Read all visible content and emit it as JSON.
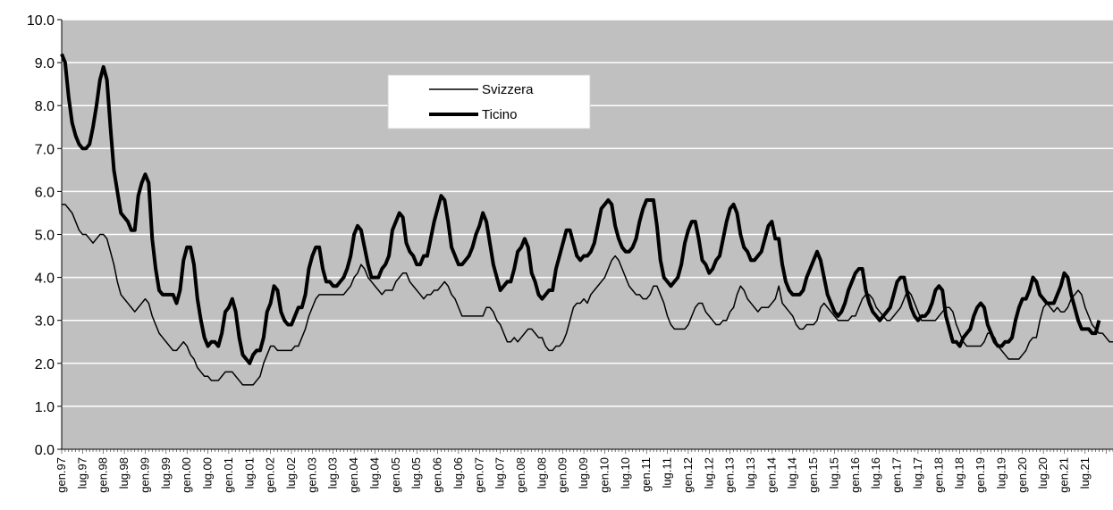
{
  "chart_data": {
    "type": "line",
    "title": "",
    "xlabel": "",
    "ylabel": "",
    "ylim": [
      0,
      10
    ],
    "y_ticks": [
      "0.0",
      "1.0",
      "2.0",
      "3.0",
      "4.0",
      "5.0",
      "6.0",
      "7.0",
      "8.0",
      "9.0",
      "10.0"
    ],
    "grid": "horizontal",
    "plot_background": "#c0c0c0",
    "grid_color": "#ffffff",
    "legend_position": "top-center",
    "x_labels": [
      "gen.97",
      "lug.97",
      "gen.98",
      "lug.98",
      "gen.99",
      "lug.99",
      "gen.00",
      "lug.00",
      "gen.01",
      "lug.01",
      "gen.02",
      "lug.02",
      "gen.03",
      "lug.03",
      "gen.04",
      "lug.04",
      "gen.05",
      "lug.05",
      "gen.06",
      "lug.06",
      "gen.07",
      "lug.07",
      "gen.08",
      "lug.08",
      "gen.09",
      "lug.09",
      "gen.10",
      "lug.10",
      "gen.11",
      "lug.11",
      "gen.12",
      "lug.12",
      "gen.13",
      "lug.13",
      "gen.14",
      "lug.14",
      "gen.15",
      "lug.15",
      "gen.16",
      "lug.16",
      "gen.17",
      "lug.17",
      "gen.18",
      "lug.18",
      "gen.19",
      "lug.19",
      "gen.20",
      "lug.20",
      "gen.21",
      "lug.21"
    ],
    "series": [
      {
        "name": "Svizzera",
        "color": "#000000",
        "width": 1.5,
        "values": [
          5.7,
          5.7,
          5.6,
          5.5,
          5.3,
          5.1,
          5.0,
          5.0,
          4.9,
          4.8,
          4.9,
          5.0,
          5.0,
          4.9,
          4.6,
          4.3,
          3.9,
          3.6,
          3.5,
          3.4,
          3.3,
          3.2,
          3.3,
          3.4,
          3.5,
          3.4,
          3.1,
          2.9,
          2.7,
          2.6,
          2.5,
          2.4,
          2.3,
          2.3,
          2.4,
          2.5,
          2.4,
          2.2,
          2.1,
          1.9,
          1.8,
          1.7,
          1.7,
          1.6,
          1.6,
          1.6,
          1.7,
          1.8,
          1.8,
          1.8,
          1.7,
          1.6,
          1.5,
          1.5,
          1.5,
          1.5,
          1.6,
          1.7,
          2.0,
          2.2,
          2.4,
          2.4,
          2.3,
          2.3,
          2.3,
          2.3,
          2.3,
          2.4,
          2.4,
          2.6,
          2.8,
          3.1,
          3.3,
          3.5,
          3.6,
          3.6,
          3.6,
          3.6,
          3.6,
          3.6,
          3.6,
          3.6,
          3.7,
          3.8,
          4.0,
          4.1,
          4.3,
          4.2,
          4.0,
          3.9,
          3.8,
          3.7,
          3.6,
          3.7,
          3.7,
          3.7,
          3.9,
          4.0,
          4.1,
          4.1,
          3.9,
          3.8,
          3.7,
          3.6,
          3.5,
          3.6,
          3.6,
          3.7,
          3.7,
          3.8,
          3.9,
          3.8,
          3.6,
          3.5,
          3.3,
          3.1,
          3.1,
          3.1,
          3.1,
          3.1,
          3.1,
          3.1,
          3.3,
          3.3,
          3.2,
          3.0,
          2.9,
          2.7,
          2.5,
          2.5,
          2.6,
          2.5,
          2.6,
          2.7,
          2.8,
          2.8,
          2.7,
          2.6,
          2.6,
          2.4,
          2.3,
          2.3,
          2.4,
          2.4,
          2.5,
          2.7,
          3.0,
          3.3,
          3.4,
          3.4,
          3.5,
          3.4,
          3.6,
          3.7,
          3.8,
          3.9,
          4.0,
          4.2,
          4.4,
          4.5,
          4.4,
          4.2,
          4.0,
          3.8,
          3.7,
          3.6,
          3.6,
          3.5,
          3.5,
          3.6,
          3.8,
          3.8,
          3.6,
          3.4,
          3.1,
          2.9,
          2.8,
          2.8,
          2.8,
          2.8,
          2.9,
          3.1,
          3.3,
          3.4,
          3.4,
          3.2,
          3.1,
          3.0,
          2.9,
          2.9,
          3.0,
          3.0,
          3.2,
          3.3,
          3.6,
          3.8,
          3.7,
          3.5,
          3.4,
          3.3,
          3.2,
          3.3,
          3.3,
          3.3,
          3.4,
          3.5,
          3.8,
          3.4,
          3.3,
          3.2,
          3.1,
          2.9,
          2.8,
          2.8,
          2.9,
          2.9,
          2.9,
          3.0,
          3.3,
          3.4,
          3.3,
          3.2,
          3.1,
          3.0,
          3.0,
          3.0,
          3.0,
          3.1,
          3.1,
          3.3,
          3.5,
          3.6,
          3.6,
          3.5,
          3.3,
          3.2,
          3.1,
          3.0,
          3.0,
          3.1,
          3.2,
          3.3,
          3.5,
          3.7,
          3.6,
          3.4,
          3.2,
          3.0,
          3.0,
          3.0,
          3.0,
          3.0,
          3.1,
          3.2,
          3.3,
          3.3,
          3.2,
          2.9,
          2.7,
          2.5,
          2.4,
          2.4,
          2.4,
          2.4,
          2.4,
          2.5,
          2.7,
          2.7,
          2.6,
          2.4,
          2.3,
          2.2,
          2.1,
          2.1,
          2.1,
          2.1,
          2.2,
          2.3,
          2.5,
          2.6,
          2.6,
          3.0,
          3.3,
          3.4,
          3.3,
          3.2,
          3.3,
          3.2,
          3.2,
          3.3,
          3.5,
          3.6,
          3.7,
          3.6,
          3.3,
          3.1,
          2.9,
          2.8,
          2.7,
          2.7,
          2.6,
          2.5,
          2.5
        ]
      },
      {
        "name": "Ticino",
        "color": "#000000",
        "width": 4,
        "values": [
          9.2,
          9.0,
          8.2,
          7.6,
          7.3,
          7.1,
          7.0,
          7.0,
          7.1,
          7.5,
          8.0,
          8.6,
          8.9,
          8.6,
          7.5,
          6.5,
          6.0,
          5.5,
          5.4,
          5.3,
          5.1,
          5.1,
          5.9,
          6.2,
          6.4,
          6.2,
          4.9,
          4.2,
          3.7,
          3.6,
          3.6,
          3.6,
          3.6,
          3.4,
          3.7,
          4.4,
          4.7,
          4.7,
          4.3,
          3.5,
          3.0,
          2.6,
          2.4,
          2.5,
          2.5,
          2.4,
          2.7,
          3.2,
          3.3,
          3.5,
          3.2,
          2.6,
          2.2,
          2.1,
          2.0,
          2.2,
          2.3,
          2.3,
          2.6,
          3.2,
          3.4,
          3.8,
          3.7,
          3.2,
          3.0,
          2.9,
          2.9,
          3.1,
          3.3,
          3.3,
          3.6,
          4.2,
          4.5,
          4.7,
          4.7,
          4.2,
          3.9,
          3.9,
          3.8,
          3.8,
          3.9,
          4.0,
          4.2,
          4.5,
          5.0,
          5.2,
          5.1,
          4.7,
          4.3,
          4.0,
          4.0,
          4.0,
          4.2,
          4.3,
          4.5,
          5.1,
          5.3,
          5.5,
          5.4,
          4.8,
          4.6,
          4.5,
          4.3,
          4.3,
          4.5,
          4.5,
          4.9,
          5.3,
          5.6,
          5.9,
          5.8,
          5.3,
          4.7,
          4.5,
          4.3,
          4.3,
          4.4,
          4.5,
          4.7,
          5.0,
          5.2,
          5.5,
          5.3,
          4.8,
          4.3,
          4.0,
          3.7,
          3.8,
          3.9,
          3.9,
          4.2,
          4.6,
          4.7,
          4.9,
          4.7,
          4.1,
          3.9,
          3.6,
          3.5,
          3.6,
          3.7,
          3.7,
          4.2,
          4.5,
          4.8,
          5.1,
          5.1,
          4.8,
          4.5,
          4.4,
          4.5,
          4.5,
          4.6,
          4.8,
          5.2,
          5.6,
          5.7,
          5.8,
          5.7,
          5.2,
          4.9,
          4.7,
          4.6,
          4.6,
          4.7,
          4.9,
          5.3,
          5.6,
          5.8,
          5.8,
          5.8,
          5.2,
          4.4,
          4.0,
          3.9,
          3.8,
          3.9,
          4.0,
          4.3,
          4.8,
          5.1,
          5.3,
          5.3,
          4.9,
          4.4,
          4.3,
          4.1,
          4.2,
          4.4,
          4.5,
          4.9,
          5.3,
          5.6,
          5.7,
          5.5,
          5.0,
          4.7,
          4.6,
          4.4,
          4.4,
          4.5,
          4.6,
          4.9,
          5.2,
          5.3,
          4.9,
          4.9,
          4.3,
          3.9,
          3.7,
          3.6,
          3.6,
          3.6,
          3.7,
          4.0,
          4.2,
          4.4,
          4.6,
          4.4,
          4.0,
          3.6,
          3.4,
          3.2,
          3.1,
          3.2,
          3.4,
          3.7,
          3.9,
          4.1,
          4.2,
          4.2,
          3.7,
          3.4,
          3.2,
          3.1,
          3.0,
          3.1,
          3.2,
          3.3,
          3.6,
          3.9,
          4.0,
          4.0,
          3.6,
          3.3,
          3.1,
          3.0,
          3.1,
          3.1,
          3.2,
          3.4,
          3.7,
          3.8,
          3.7,
          3.1,
          2.8,
          2.5,
          2.5,
          2.4,
          2.6,
          2.7,
          2.8,
          3.1,
          3.3,
          3.4,
          3.3,
          2.9,
          2.7,
          2.5,
          2.4,
          2.4,
          2.5,
          2.5,
          2.6,
          3.0,
          3.3,
          3.5,
          3.5,
          3.7,
          4.0,
          3.9,
          3.6,
          3.5,
          3.4,
          3.4,
          3.4,
          3.6,
          3.8,
          4.1,
          4.0,
          3.6,
          3.3,
          3.0,
          2.8,
          2.8,
          2.8,
          2.7,
          2.7,
          3.0
        ]
      }
    ]
  }
}
